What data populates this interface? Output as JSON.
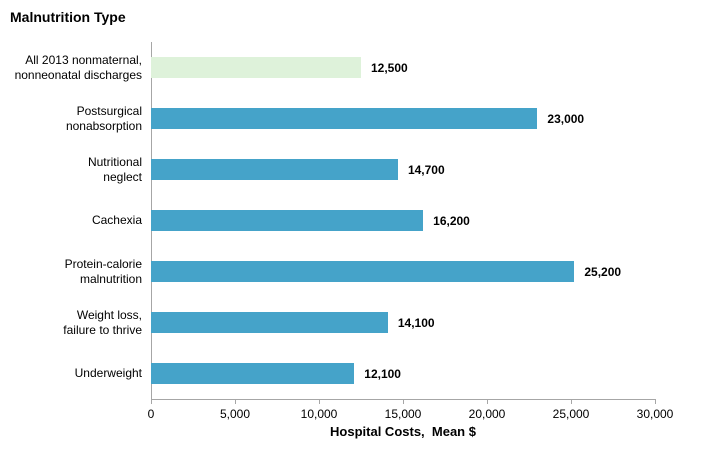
{
  "chart_data": {
    "type": "bar",
    "orientation": "horizontal",
    "title": "Malnutrition Type",
    "xlabel": "Hospital Costs,  Mean $",
    "ylabel": "",
    "categories": [
      "All 2013 nonmaternal,\nnonneonatal discharges",
      "Postsurgical\nnonabsorption",
      "Nutritional\nneglect",
      "Cachexia",
      "Protein-calorie\nmalnutrition",
      "Weight loss,\nfailure to thrive",
      "Underweight"
    ],
    "values": [
      12500,
      23000,
      14700,
      16200,
      25200,
      14100,
      12100
    ],
    "value_labels": [
      "12,500",
      "23,000",
      "14,700",
      "16,200",
      "25,200",
      "14,100",
      "12,100"
    ],
    "xlim": [
      0,
      30000
    ],
    "xticks": [
      0,
      5000,
      10000,
      15000,
      20000,
      25000,
      30000
    ],
    "xtick_labels": [
      "0",
      "5,000",
      "10,000",
      "15,000",
      "20,000",
      "25,000",
      "30,000"
    ],
    "grid": false,
    "legend": null,
    "colors": {
      "bar_default": "#45a3c9",
      "bar_highlight_first": "#def2da",
      "axis_line": "#a6a6a6",
      "text": "#000000"
    },
    "bar_colors": [
      "#def2da",
      "#45a3c9",
      "#45a3c9",
      "#45a3c9",
      "#45a3c9",
      "#45a3c9",
      "#45a3c9"
    ]
  }
}
